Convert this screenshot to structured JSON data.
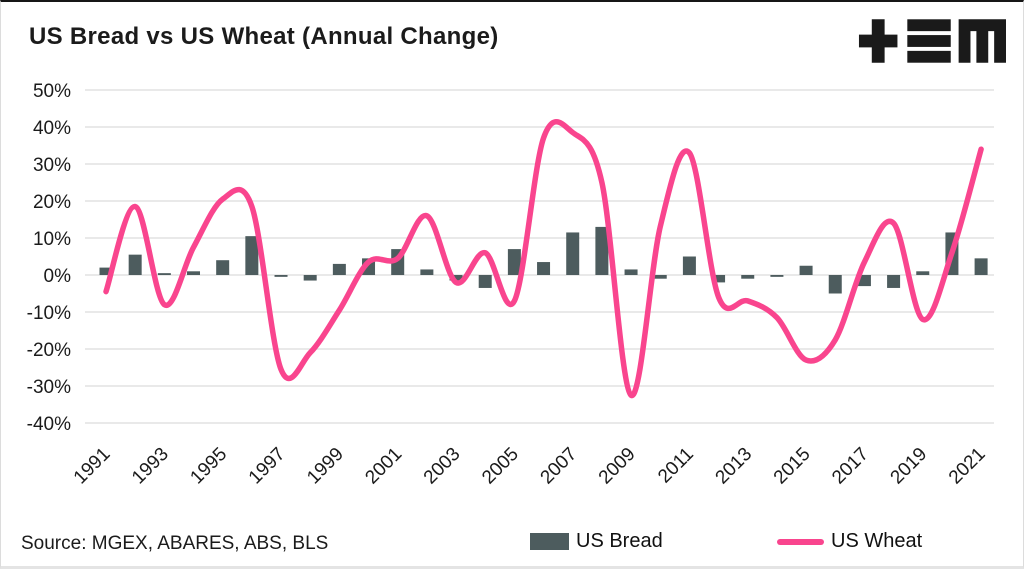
{
  "page": {
    "title": "US Bread vs US Wheat (Annual Change)",
    "source": "Source: MGEX, ABARES, ABS, BLS"
  },
  "logo": {
    "name": "tem-logo",
    "glyphs": [
      "plus",
      "triple-bar",
      "m"
    ]
  },
  "colors": {
    "bread_bar": "#4D5C5E",
    "wheat_line": "#F9458E",
    "text": "#1B1B1B",
    "grid": "#E2E2E2",
    "background": "#FFFFFF"
  },
  "legend": [
    {
      "label": "US Bread",
      "type": "bar"
    },
    {
      "label": "US Wheat",
      "type": "line"
    }
  ],
  "chart_data": {
    "type": "combo",
    "title": "US Bread vs US Wheat (Annual Change)",
    "x": [
      1991,
      1992,
      1993,
      1994,
      1995,
      1996,
      1997,
      1998,
      1999,
      2000,
      2001,
      2002,
      2003,
      2004,
      2005,
      2006,
      2007,
      2008,
      2009,
      2010,
      2011,
      2012,
      2013,
      2014,
      2015,
      2016,
      2017,
      2018,
      2019,
      2020,
      2021
    ],
    "x_tick_labels": [
      "1991",
      "1993",
      "1995",
      "1997",
      "1999",
      "2001",
      "2003",
      "2005",
      "2007",
      "2009",
      "2011",
      "2013",
      "2015",
      "2017",
      "2019",
      "2021"
    ],
    "series": [
      {
        "name": "US Bread",
        "type": "bar",
        "unit": "%",
        "values": [
          2,
          5.5,
          0.5,
          1,
          4,
          10.5,
          -0.5,
          -1.5,
          3,
          4.5,
          7,
          1.5,
          -1.5,
          -3.5,
          7,
          3.5,
          11.5,
          13,
          1.5,
          -1,
          5,
          -2,
          -1,
          -0.5,
          2.5,
          -5,
          -3,
          -3.5,
          1,
          11.5,
          4.5
        ]
      },
      {
        "name": "US Wheat",
        "type": "line",
        "unit": "%",
        "smooth": true,
        "values": [
          -4.5,
          18.5,
          -8,
          7.5,
          20.5,
          18.5,
          -25.5,
          -21,
          -9.5,
          3.5,
          4.5,
          16,
          -2,
          6,
          -7,
          37,
          38.5,
          25,
          -32.5,
          13,
          33,
          -6,
          -7,
          -11.5,
          -23,
          -17.5,
          3.5,
          14,
          -12,
          6,
          34
        ]
      }
    ],
    "y_ticks": [
      {
        "value": 50,
        "label": "50%"
      },
      {
        "value": 40,
        "label": "40%"
      },
      {
        "value": 30,
        "label": "30%"
      },
      {
        "value": 20,
        "label": "20%"
      },
      {
        "value": 10,
        "label": "10%"
      },
      {
        "value": 0,
        "label": "0%"
      },
      {
        "value": -10,
        "label": "-10%"
      },
      {
        "value": -20,
        "label": "-20%"
      },
      {
        "value": -30,
        "label": "-30%"
      },
      {
        "value": -40,
        "label": "-40%"
      }
    ],
    "ylim": [
      -45,
      55
    ],
    "grid": "horizontal",
    "legend_position": "bottom"
  }
}
